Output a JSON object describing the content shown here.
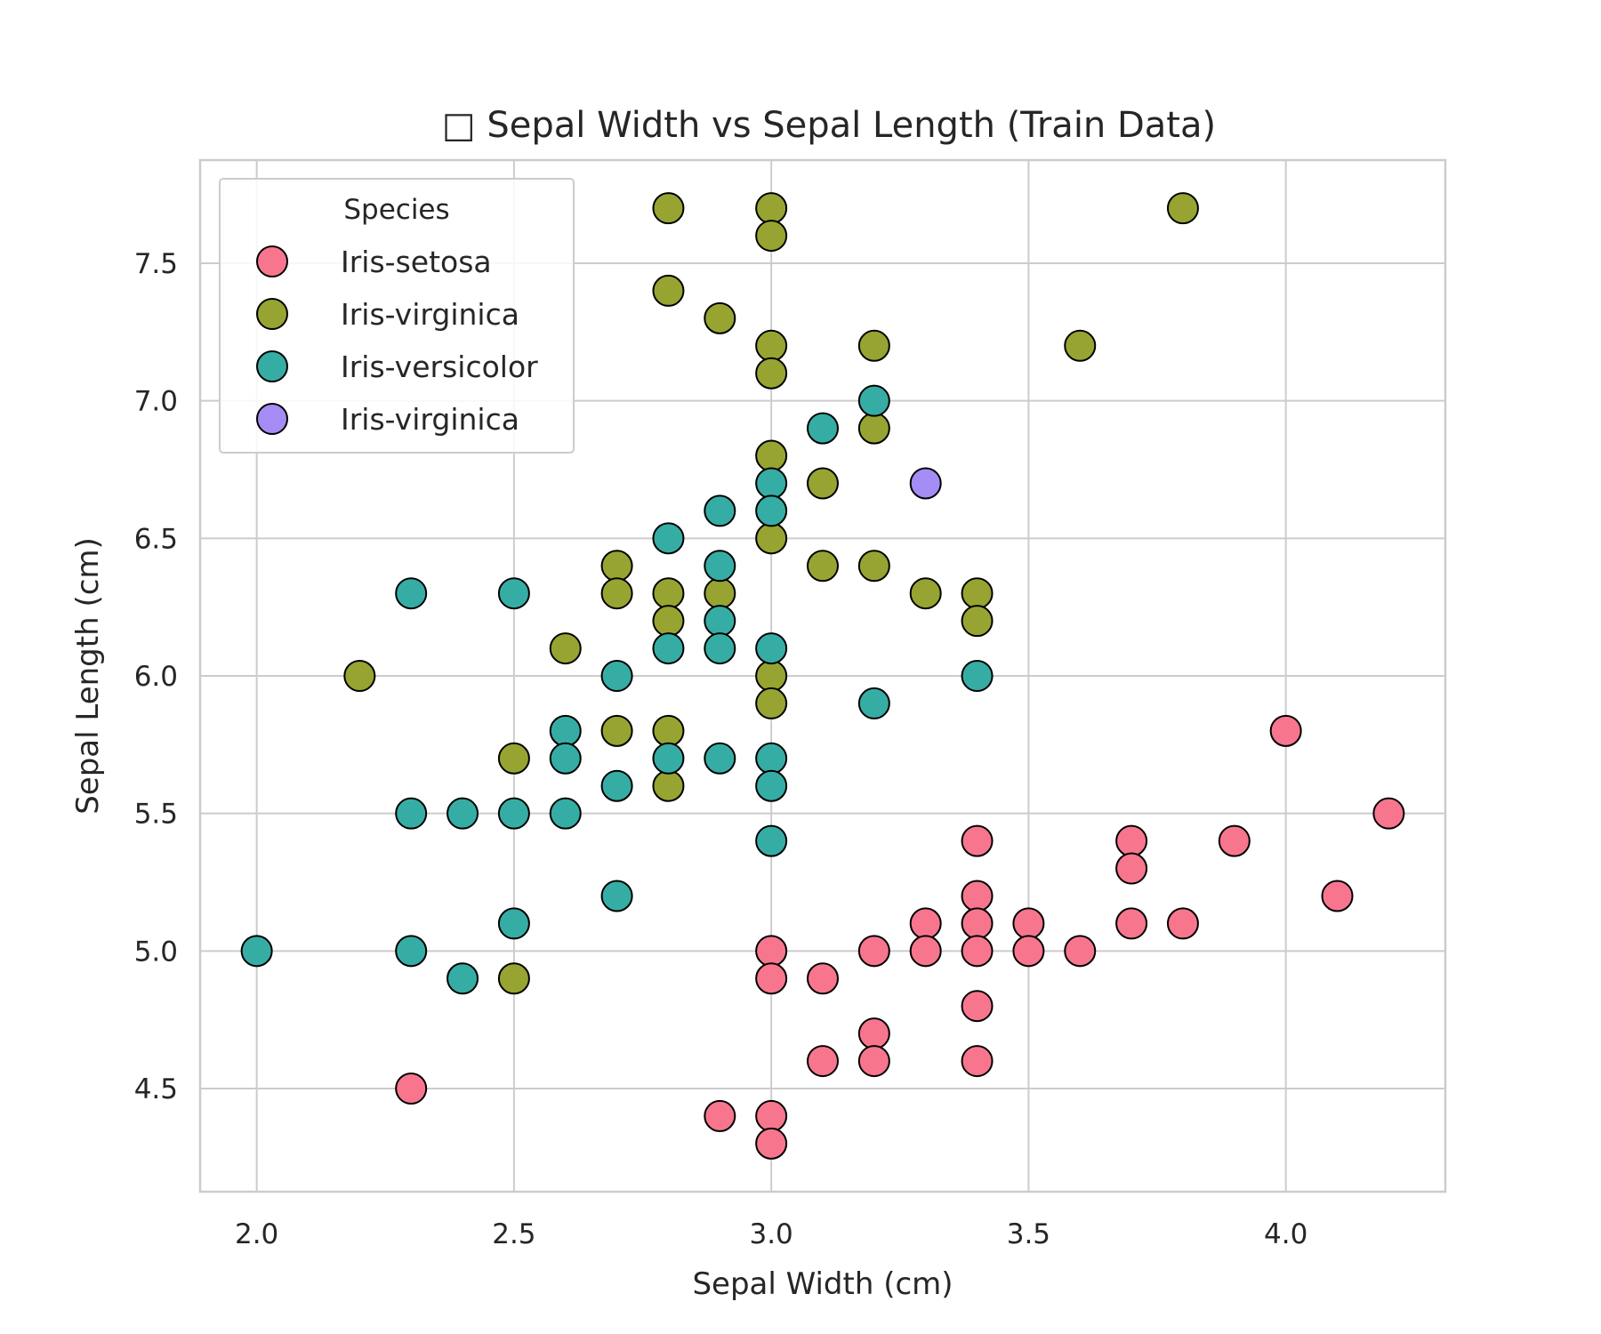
{
  "chart_data": {
    "type": "scatter",
    "title": "□ Sepal Width vs Sepal Length (Train Data)",
    "xlabel": "Sepal Width (cm)",
    "ylabel": "Sepal Length (cm)",
    "xlim": [
      1.89,
      4.31
    ],
    "ylim": [
      4.125,
      7.875
    ],
    "x_ticks": [
      2.0,
      2.5,
      3.0,
      3.5,
      4.0
    ],
    "x_tick_labels": [
      "2.0",
      "2.5",
      "3.0",
      "3.5",
      "4.0"
    ],
    "y_ticks": [
      4.5,
      5.0,
      5.5,
      6.0,
      6.5,
      7.0,
      7.5
    ],
    "y_tick_labels": [
      "4.5",
      "5.0",
      "5.5",
      "6.0",
      "6.5",
      "7.0",
      "7.5"
    ],
    "grid": true,
    "legend": {
      "title": "Species",
      "position": "top-left"
    },
    "series": [
      {
        "name": "Iris-setosa",
        "color": "#f7768e",
        "points": [
          [
            2.3,
            4.5
          ],
          [
            2.9,
            4.4
          ],
          [
            3.0,
            4.4
          ],
          [
            3.0,
            4.3
          ],
          [
            3.0,
            5.0
          ],
          [
            3.0,
            4.9
          ],
          [
            3.1,
            4.9
          ],
          [
            3.1,
            4.6
          ],
          [
            3.2,
            5.0
          ],
          [
            3.2,
            4.7
          ],
          [
            3.2,
            4.6
          ],
          [
            3.3,
            5.1
          ],
          [
            3.3,
            5.0
          ],
          [
            3.4,
            5.4
          ],
          [
            3.4,
            5.2
          ],
          [
            3.4,
            5.1
          ],
          [
            3.4,
            5.0
          ],
          [
            3.4,
            4.8
          ],
          [
            3.4,
            4.6
          ],
          [
            3.5,
            5.1
          ],
          [
            3.5,
            5.0
          ],
          [
            3.6,
            5.0
          ],
          [
            3.7,
            5.4
          ],
          [
            3.7,
            5.3
          ],
          [
            3.7,
            5.1
          ],
          [
            3.8,
            5.1
          ],
          [
            3.9,
            5.4
          ],
          [
            4.0,
            5.8
          ],
          [
            4.1,
            5.2
          ],
          [
            4.2,
            5.5
          ]
        ]
      },
      {
        "name": "Iris-virginica",
        "color": "#97a431",
        "points": [
          [
            2.2,
            6.0
          ],
          [
            2.5,
            5.7
          ],
          [
            2.5,
            4.9
          ],
          [
            2.6,
            6.1
          ],
          [
            2.7,
            6.4
          ],
          [
            2.7,
            6.3
          ],
          [
            2.7,
            5.8
          ],
          [
            2.8,
            7.7
          ],
          [
            2.8,
            7.4
          ],
          [
            2.8,
            6.3
          ],
          [
            2.8,
            6.2
          ],
          [
            2.8,
            5.8
          ],
          [
            2.8,
            5.6
          ],
          [
            2.9,
            7.3
          ],
          [
            2.9,
            6.3
          ],
          [
            3.0,
            7.7
          ],
          [
            3.0,
            7.6
          ],
          [
            3.0,
            7.2
          ],
          [
            3.0,
            7.1
          ],
          [
            3.0,
            6.8
          ],
          [
            3.0,
            6.5
          ],
          [
            3.0,
            6.0
          ],
          [
            3.0,
            5.9
          ],
          [
            3.1,
            6.7
          ],
          [
            3.1,
            6.4
          ],
          [
            3.2,
            7.2
          ],
          [
            3.2,
            6.9
          ],
          [
            3.2,
            6.4
          ],
          [
            3.3,
            6.3
          ],
          [
            3.4,
            6.3
          ],
          [
            3.4,
            6.2
          ],
          [
            3.6,
            7.2
          ],
          [
            3.8,
            7.7
          ]
        ]
      },
      {
        "name": "Iris-versicolor",
        "color": "#36ada4",
        "points": [
          [
            2.0,
            5.0
          ],
          [
            2.3,
            6.3
          ],
          [
            2.3,
            5.5
          ],
          [
            2.3,
            5.0
          ],
          [
            2.4,
            5.5
          ],
          [
            2.4,
            4.9
          ],
          [
            2.5,
            6.3
          ],
          [
            2.5,
            5.5
          ],
          [
            2.5,
            5.1
          ],
          [
            2.6,
            5.8
          ],
          [
            2.6,
            5.7
          ],
          [
            2.6,
            5.5
          ],
          [
            2.7,
            6.0
          ],
          [
            2.7,
            5.6
          ],
          [
            2.7,
            5.2
          ],
          [
            2.8,
            6.5
          ],
          [
            2.8,
            6.1
          ],
          [
            2.8,
            5.7
          ],
          [
            2.9,
            6.6
          ],
          [
            2.9,
            6.4
          ],
          [
            2.9,
            6.2
          ],
          [
            2.9,
            6.1
          ],
          [
            2.9,
            5.7
          ],
          [
            3.0,
            6.7
          ],
          [
            3.0,
            6.6
          ],
          [
            3.0,
            6.1
          ],
          [
            3.0,
            5.7
          ],
          [
            3.0,
            5.6
          ],
          [
            3.0,
            5.4
          ],
          [
            3.1,
            6.9
          ],
          [
            3.2,
            7.0
          ],
          [
            3.2,
            5.9
          ],
          [
            3.4,
            6.0
          ]
        ]
      },
      {
        "name": "Iris-virginica",
        "color": "#a48cf4",
        "points": [
          [
            3.3,
            6.7
          ]
        ]
      }
    ]
  }
}
